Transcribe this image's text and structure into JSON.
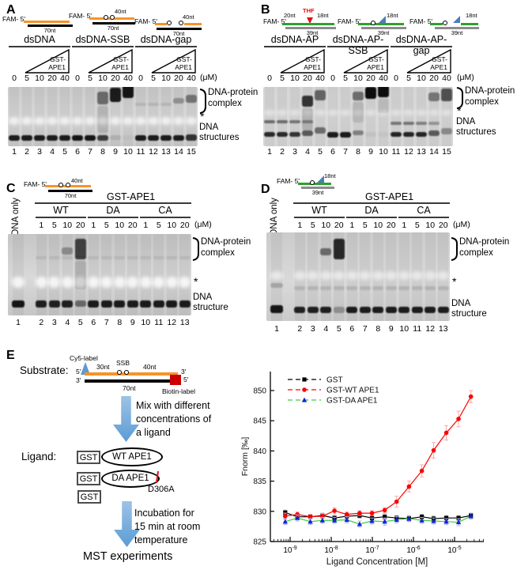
{
  "panelA": {
    "label": "A",
    "substrates": [
      {
        "name": "dsDNA",
        "fam": "FAM- 5'",
        "bottom_nt": "70nt"
      },
      {
        "name": "dsDNA-SSB",
        "fam": "FAM- 5'",
        "top_nt": "40nt",
        "bottom_nt": "70nt"
      },
      {
        "name": "dsDNA-gap",
        "fam": "FAM- 5'",
        "top_nt": "40nt",
        "bottom_nt": "70nt"
      }
    ],
    "ramp": {
      "line1": "GST-",
      "line2": "APE1"
    },
    "conc": [
      "0",
      "5",
      "10",
      "20",
      "40",
      "0",
      "5",
      "10",
      "20",
      "40",
      "0",
      "5",
      "10",
      "20",
      "40"
    ],
    "unit": "(μM)",
    "lane_numbers": [
      "1",
      "2",
      "3",
      "4",
      "5",
      "6",
      "7",
      "8",
      "9",
      "10",
      "11",
      "12",
      "13",
      "14",
      "15"
    ],
    "annotations": {
      "complex1": "DNA-protein",
      "complex2": "complex",
      "star": "*",
      "struct1": "DNA",
      "struct2": "structures"
    },
    "gel": {
      "bg": "#cbcbcb",
      "star": {
        "y": 38,
        "h": 10,
        "a": 0.7
      },
      "bands": [
        [
          8,
          6,
          16,
          0.5
        ],
        [
          8,
          24,
          34,
          0.12
        ],
        [
          9,
          1,
          18,
          0.92
        ],
        [
          10,
          -3,
          17,
          0.95
        ],
        [
          11,
          20,
          4,
          0.1
        ],
        [
          12,
          20,
          4,
          0.1
        ],
        [
          13,
          20,
          4,
          0.1
        ],
        [
          14,
          14,
          7,
          0.3
        ],
        [
          15,
          10,
          10,
          0.45
        ],
        [
          1,
          61,
          7,
          0.92
        ],
        [
          2,
          61,
          7,
          0.92
        ],
        [
          3,
          61,
          7,
          0.92
        ],
        [
          4,
          61,
          7,
          0.92
        ],
        [
          5,
          61,
          7,
          0.92
        ],
        [
          6,
          61,
          7,
          0.95
        ],
        [
          7,
          61,
          7,
          0.95
        ],
        [
          8,
          61,
          7,
          0.75
        ],
        [
          9,
          61,
          6,
          0.12
        ],
        [
          10,
          61,
          6,
          0.04
        ],
        [
          11,
          61,
          7,
          0.92
        ],
        [
          12,
          61,
          7,
          0.92
        ],
        [
          13,
          61,
          7,
          0.92
        ],
        [
          14,
          61,
          7,
          0.92
        ],
        [
          15,
          60,
          8,
          0.8
        ]
      ]
    }
  },
  "panelB": {
    "label": "B",
    "substrates": [
      {
        "name": "dsDNA-AP",
        "fam": "FAM- 5'",
        "nt20": "20nt",
        "thf": "THF",
        "nt18": "18nt",
        "bottom_nt": "39nt"
      },
      {
        "name": "dsDNA-AP-SSB",
        "fam": "FAM- 5'",
        "nt18": "18nt",
        "bottom_nt": "39nt"
      },
      {
        "name": "dsDNA-AP-gap",
        "fam": "FAM- 5'",
        "nt18": "18nt",
        "bottom_nt": "39nt"
      }
    ],
    "ramp": {
      "line1": "GST-",
      "line2": "APE1"
    },
    "conc": [
      "0",
      "5",
      "10",
      "20",
      "40",
      "0",
      "5",
      "10",
      "20",
      "40",
      "0",
      "5",
      "10",
      "20",
      "40"
    ],
    "unit": "(μM)",
    "lane_numbers": [
      "1",
      "2",
      "3",
      "4",
      "5",
      "6",
      "7",
      "8",
      "9",
      "10",
      "11",
      "12",
      "13",
      "14",
      "15"
    ],
    "annotations": {
      "complex1": "DNA-protein",
      "complex2": "complex",
      "star": "*",
      "struct1": "DNA",
      "struct2": "structures"
    },
    "gel": {
      "bg": "#d6d6d6",
      "star": {
        "y": 29,
        "h": 7,
        "a": 0.45
      },
      "bands": [
        [
          4,
          11,
          14,
          0.8
        ],
        [
          4,
          27,
          28,
          0.15
        ],
        [
          5,
          4,
          13,
          0.55
        ],
        [
          8,
          6,
          11,
          0.5
        ],
        [
          8,
          19,
          26,
          0.12
        ],
        [
          9,
          0,
          15,
          1.0
        ],
        [
          10,
          -2,
          15,
          1.0
        ],
        [
          10,
          15,
          18,
          0.1
        ],
        [
          14,
          7,
          11,
          0.45
        ],
        [
          15,
          2,
          16,
          0.65
        ],
        [
          1,
          42,
          4,
          0.5
        ],
        [
          2,
          42,
          4,
          0.5
        ],
        [
          3,
          42,
          4,
          0.45
        ],
        [
          4,
          42,
          4,
          0.35
        ],
        [
          11,
          44,
          4,
          0.45
        ],
        [
          12,
          44,
          4,
          0.45
        ],
        [
          13,
          44,
          4,
          0.4
        ],
        [
          14,
          44,
          4,
          0.3
        ],
        [
          1,
          57,
          6,
          0.85
        ],
        [
          2,
          57,
          6,
          0.85
        ],
        [
          3,
          57,
          6,
          0.8
        ],
        [
          4,
          55,
          7,
          0.6
        ],
        [
          5,
          51,
          8,
          0.5
        ],
        [
          6,
          57,
          7,
          0.92
        ],
        [
          7,
          57,
          7,
          0.92
        ],
        [
          8,
          55,
          6,
          0.4
        ],
        [
          9,
          57,
          6,
          0.06
        ],
        [
          10,
          57,
          6,
          0.04
        ],
        [
          11,
          57,
          6,
          0.88
        ],
        [
          12,
          57,
          6,
          0.88
        ],
        [
          13,
          57,
          6,
          0.88
        ],
        [
          14,
          55,
          7,
          0.6
        ],
        [
          15,
          52,
          8,
          0.35
        ]
      ]
    }
  },
  "panelC": {
    "label": "C",
    "dna_only": "DNA only",
    "substrate": {
      "fam": "FAM- 5'",
      "top_nt": "40nt",
      "bottom_nt": "70nt"
    },
    "header": "GST-APE1",
    "groups": [
      "WT",
      "DA",
      "CA"
    ],
    "conc": [
      "1",
      "5",
      "10",
      "20",
      "1",
      "5",
      "10",
      "20",
      "1",
      "5",
      "10",
      "20"
    ],
    "unit": "(μM)",
    "lane_numbers": [
      "1",
      "2",
      "3",
      "4",
      "5",
      "6",
      "7",
      "8",
      "9",
      "10",
      "11",
      "12",
      "13"
    ],
    "annotations": {
      "complex1": "DNA-protein",
      "complex2": "complex",
      "star": "*",
      "struct1": "DNA",
      "struct2": "structure"
    },
    "gel": {
      "bg": "#c6c6c6",
      "star": {
        "y": 54,
        "h": 14,
        "a": 0.8
      },
      "bands": [
        [
          4,
          17,
          9,
          0.32
        ],
        [
          5,
          6,
          26,
          0.72
        ],
        [
          5,
          34,
          36,
          0.15
        ],
        [
          2,
          28,
          4,
          0.08
        ],
        [
          3,
          28,
          4,
          0.08
        ],
        [
          4,
          28,
          4,
          0.08
        ],
        [
          5,
          28,
          4,
          0.08
        ],
        [
          6,
          28,
          4,
          0.08
        ],
        [
          7,
          28,
          4,
          0.08
        ],
        [
          8,
          28,
          4,
          0.08
        ],
        [
          9,
          28,
          4,
          0.08
        ],
        [
          10,
          28,
          4,
          0.08
        ],
        [
          11,
          28,
          4,
          0.08
        ],
        [
          12,
          28,
          4,
          0.08
        ],
        [
          13,
          28,
          4,
          0.08
        ],
        [
          1,
          84,
          9,
          0.95
        ],
        [
          2,
          84,
          9,
          0.9
        ],
        [
          3,
          84,
          9,
          0.9
        ],
        [
          4,
          84,
          9,
          0.9
        ],
        [
          5,
          84,
          8,
          0.5
        ],
        [
          6,
          84,
          9,
          0.92
        ],
        [
          7,
          84,
          9,
          0.92
        ],
        [
          8,
          84,
          9,
          0.92
        ],
        [
          9,
          84,
          9,
          0.92
        ],
        [
          10,
          84,
          9,
          0.92
        ],
        [
          11,
          84,
          9,
          0.92
        ],
        [
          12,
          84,
          9,
          0.92
        ],
        [
          13,
          84,
          9,
          0.92
        ]
      ]
    }
  },
  "panelD": {
    "label": "D",
    "dna_only": "DNA only",
    "substrate": {
      "fam": "FAM- 5'",
      "top_nt": "18nt",
      "bottom_nt": "39nt"
    },
    "header": "GST-APE1",
    "groups": [
      "WT",
      "DA",
      "CA"
    ],
    "conc": [
      "1",
      "5",
      "10",
      "20",
      "1",
      "5",
      "10",
      "20",
      "1",
      "5",
      "10",
      "20"
    ],
    "unit": "(μM)",
    "lane_numbers": [
      "1",
      "2",
      "3",
      "4",
      "5",
      "6",
      "7",
      "8",
      "9",
      "10",
      "11",
      "12",
      "13"
    ],
    "annotations": {
      "complex1": "DNA-protein",
      "complex2": "complex",
      "star": "*",
      "struct1": "DNA",
      "struct2": "structure"
    },
    "gel": {
      "bg": "#cbcbcb",
      "star": {
        "y": 49,
        "h": 11,
        "a": 0.55
      },
      "bands": [
        [
          4,
          20,
          9,
          0.5
        ],
        [
          5,
          8,
          26,
          0.85
        ],
        [
          1,
          64,
          6,
          0.2
        ],
        [
          2,
          68,
          5,
          0.12
        ],
        [
          3,
          68,
          5,
          0.12
        ],
        [
          4,
          68,
          5,
          0.12
        ],
        [
          5,
          68,
          5,
          0.12
        ],
        [
          6,
          68,
          5,
          0.12
        ],
        [
          7,
          68,
          5,
          0.12
        ],
        [
          8,
          68,
          5,
          0.12
        ],
        [
          9,
          68,
          5,
          0.12
        ],
        [
          10,
          68,
          5,
          0.12
        ],
        [
          11,
          68,
          5,
          0.12
        ],
        [
          12,
          68,
          5,
          0.12
        ],
        [
          13,
          68,
          5,
          0.12
        ],
        [
          1,
          92,
          10,
          0.95
        ],
        [
          2,
          94,
          8,
          0.9
        ],
        [
          3,
          94,
          8,
          0.9
        ],
        [
          4,
          94,
          8,
          0.9
        ],
        [
          5,
          94,
          8,
          0.3
        ],
        [
          6,
          94,
          8,
          0.92
        ],
        [
          7,
          94,
          8,
          0.92
        ],
        [
          8,
          94,
          8,
          0.92
        ],
        [
          9,
          94,
          8,
          0.92
        ],
        [
          10,
          94,
          8,
          0.92
        ],
        [
          11,
          94,
          8,
          0.92
        ],
        [
          12,
          94,
          8,
          0.92
        ],
        [
          13,
          94,
          8,
          0.92
        ]
      ]
    }
  },
  "panelE": {
    "label": "E",
    "substrate_label": "Substrate:",
    "diagram": {
      "cy5": "Cy5-label",
      "p5_top": "5'",
      "p3_top": "3'",
      "p3_bot": "3'",
      "p5_bot": "5'",
      "nt30": "30nt",
      "ssb": "SSB",
      "nt40": "40nt",
      "nt70": "70nt",
      "biotin": "Biotin-label"
    },
    "arrow1_text": [
      "Mix with different",
      "concentrations of",
      "a ligand"
    ],
    "ligand_label": "Ligand:",
    "ligands": [
      {
        "tag": "GST",
        "oval": "WT APE1"
      },
      {
        "tag": "GST",
        "oval": "DA APE1",
        "note": "D306A"
      },
      {
        "tag": "GST"
      }
    ],
    "arrow2_text": [
      "Incubation for",
      "15 min at room",
      "temperature"
    ],
    "mst": "MST experiments"
  },
  "chart_data": {
    "type": "line",
    "xlabel": "Ligand Concentration [M]",
    "ylabel": "Fnorm [‰]",
    "yticks": [
      825,
      830,
      835,
      840,
      845,
      850
    ],
    "ylim": [
      825,
      852
    ],
    "xtick_exponents": [
      -9,
      -8,
      -7,
      -6,
      -5
    ],
    "xscale": "log",
    "legend_position": "top-left",
    "x": [
      7.6e-10,
      1.5e-09,
      3.1e-09,
      6.1e-09,
      1.2e-08,
      2.4e-08,
      4.9e-08,
      9.8e-08,
      2e-07,
      3.9e-07,
      7.8e-07,
      1.6e-06,
      3.1e-06,
      6.3e-06,
      1.25e-05,
      2.5e-05
    ],
    "series": [
      {
        "name": "GST",
        "marker": "square",
        "marker_color": "#000000",
        "line_color": "#000000",
        "err_color": "#a6a6a6",
        "values": [
          829.8,
          829.1,
          829.1,
          829.3,
          828.9,
          829.2,
          829.3,
          828.9,
          829.1,
          828.9,
          828.8,
          829.1,
          828.8,
          828.9,
          828.9,
          829.3
        ],
        "errors": [
          0.4,
          0.4,
          0.4,
          0.4,
          0.4,
          0.4,
          0.4,
          0.4,
          0.5,
          0.4,
          0.4,
          0.4,
          0.4,
          0.4,
          0.4,
          0.4
        ]
      },
      {
        "name": "GST-WT APE1",
        "marker": "circle",
        "marker_color": "#ff0000",
        "line_color": "#ff0000",
        "err_color": "#f7a8a8",
        "values": [
          829.2,
          829.5,
          829.1,
          829.2,
          830.1,
          829.5,
          829.7,
          829.7,
          830.2,
          831.6,
          834.1,
          836.7,
          840.1,
          843.0,
          845.3,
          849.0
        ],
        "errors": [
          0.5,
          0.4,
          0.4,
          0.4,
          0.5,
          0.4,
          0.4,
          0.4,
          0.4,
          0.9,
          0.9,
          1.0,
          1.3,
          1.2,
          1.3,
          1.0
        ]
      },
      {
        "name": "GST-DA APE1",
        "marker": "triangle",
        "marker_color": "#1420dc",
        "line_color": "#3ecc3e",
        "err_color": "#a8b4f0",
        "values": [
          828.3,
          828.9,
          828.3,
          828.5,
          828.5,
          828.6,
          827.9,
          828.4,
          828.3,
          828.6,
          828.8,
          828.5,
          828.4,
          828.3,
          828.2,
          829.2
        ],
        "errors": [
          0.5,
          0.5,
          0.5,
          0.5,
          0.5,
          0.5,
          0.5,
          0.5,
          0.6,
          0.5,
          0.5,
          0.5,
          0.5,
          0.5,
          0.6,
          0.5
        ]
      }
    ]
  },
  "colors": {
    "orange_strand": "#f79428",
    "black_strand": "#000000",
    "green_strand": "#2ea12e",
    "gray_strand": "#8c8c8c",
    "thf_red": "#e01010",
    "flap_blue": "#4a7ebc",
    "arrow_blue": "#5b9bd5",
    "biotin_red": "#cc0000"
  }
}
